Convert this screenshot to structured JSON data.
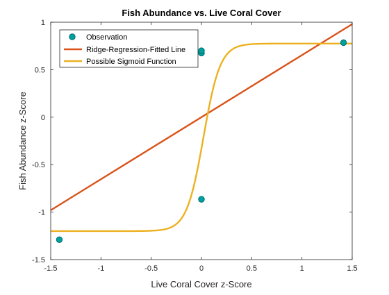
{
  "chart_data": {
    "type": "scatter",
    "title": "Fish Abundance vs. Live Coral Cover",
    "xlabel": "Live Coral Cover z-Score",
    "ylabel": "Fish Abundance z-Score",
    "xlim": [
      -1.5,
      1.5
    ],
    "ylim": [
      -1.5,
      1
    ],
    "xticks": [
      -1.5,
      -1,
      -0.5,
      0,
      0.5,
      1,
      1.5
    ],
    "xtick_labels": [
      "-1.5",
      "-1",
      "-0.5",
      "0",
      "0.5",
      "1",
      "1.5"
    ],
    "yticks": [
      -1.5,
      -1,
      -0.5,
      0,
      0.5,
      1
    ],
    "ytick_labels": [
      "-1.5",
      "-1",
      "-0.5",
      "0",
      "0.5",
      "1"
    ],
    "grid": false,
    "legend_position": "top-left",
    "series": [
      {
        "name": "Observation",
        "kind": "scatter",
        "color": "#00a0a0",
        "edge_color": "#006e6e",
        "points": [
          {
            "x": -1.414,
            "y": -1.29
          },
          {
            "x": 0.0,
            "y": -0.865
          },
          {
            "x": 0.0,
            "y": 0.675
          },
          {
            "x": 0.0,
            "y": 0.7
          },
          {
            "x": 1.414,
            "y": 0.785
          }
        ]
      },
      {
        "name": "Ridge-Regression-Fitted Line",
        "kind": "line",
        "color": "#d95319",
        "points": [
          {
            "x": -1.5,
            "y": -0.98
          },
          {
            "x": 1.5,
            "y": 0.98
          }
        ]
      },
      {
        "name": "Possible Sigmoid Function",
        "kind": "line",
        "color": "#edb120",
        "function": {
          "form": "sigmoid",
          "lower": -1.2,
          "upper": 0.775,
          "center": 0.02,
          "steepness": 12
        }
      }
    ]
  }
}
